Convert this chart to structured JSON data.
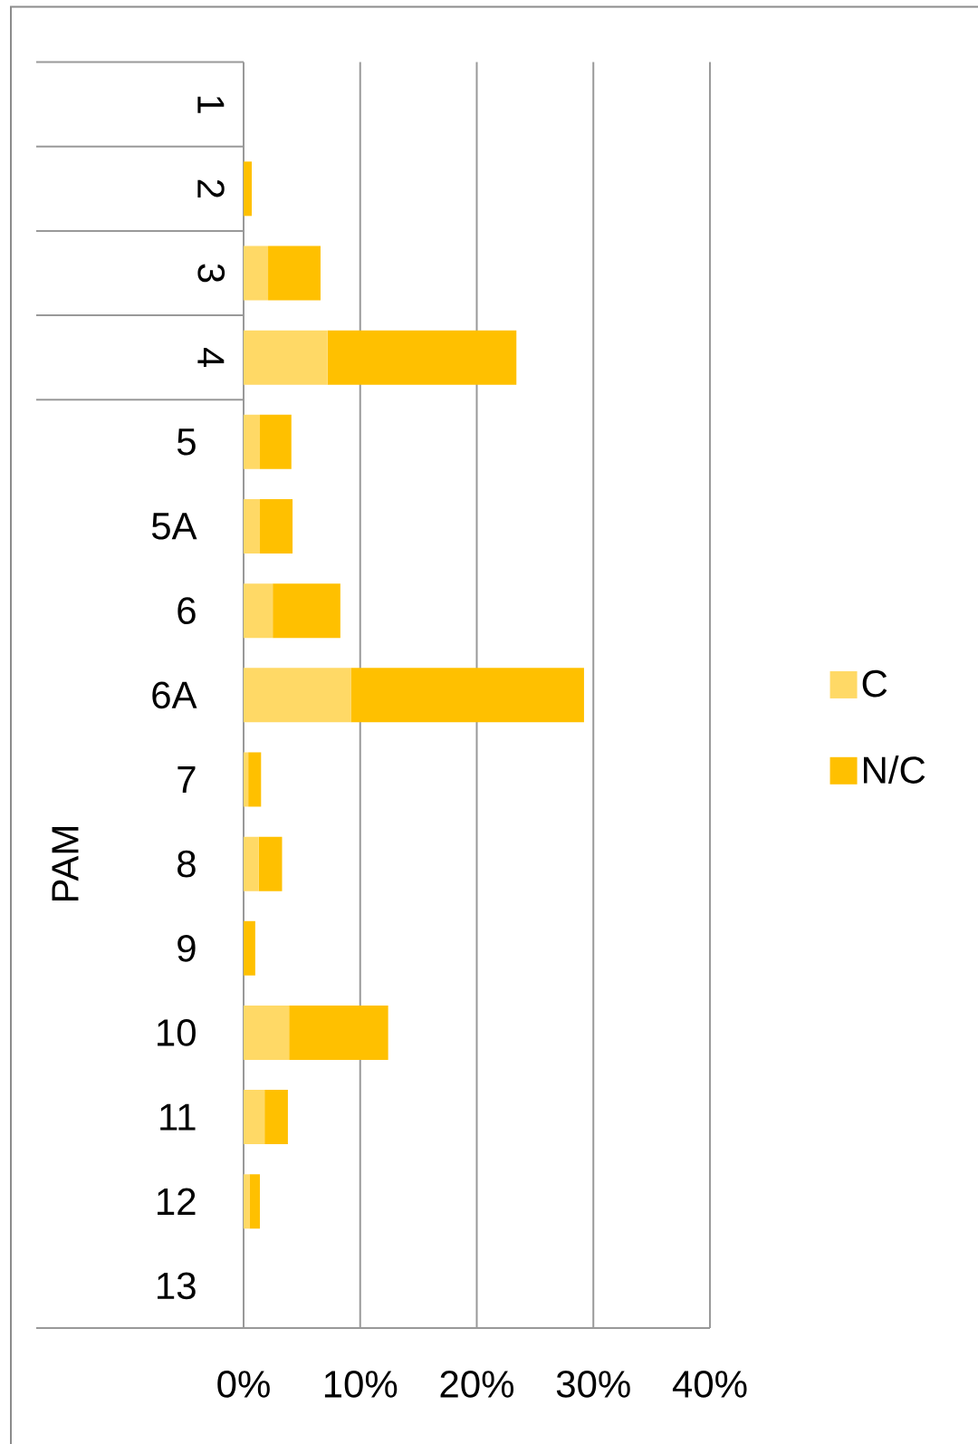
{
  "chart_data": {
    "type": "bar",
    "orientation": "horizontal",
    "stacked": true,
    "categories": [
      "1",
      "2",
      "3",
      "4",
      "5",
      "5A",
      "6",
      "6A",
      "7",
      "8",
      "9",
      "10",
      "11",
      "12",
      "13"
    ],
    "series": [
      {
        "name": "C",
        "color": "#ffd966",
        "values": [
          0,
          0,
          2.1,
          7.2,
          1.4,
          1.4,
          2.5,
          9.2,
          0.4,
          1.3,
          0,
          3.9,
          1.8,
          0.5,
          0
        ]
      },
      {
        "name": "N/C",
        "color": "#ffc000",
        "values": [
          0,
          0.7,
          4.5,
          16.2,
          2.7,
          2.8,
          5.8,
          20.0,
          1.1,
          2.0,
          1.0,
          8.5,
          2.0,
          0.9,
          0
        ]
      }
    ],
    "xlim": [
      0,
      40
    ],
    "xticks": [
      {
        "value": 0,
        "label": "0%"
      },
      {
        "value": 10,
        "label": "10%"
      },
      {
        "value": 20,
        "label": "20%"
      },
      {
        "value": 30,
        "label": "30%"
      },
      {
        "value": 40,
        "label": "40%"
      }
    ],
    "grid": "x",
    "legend": "right",
    "annotations": [
      "PAM"
    ]
  }
}
